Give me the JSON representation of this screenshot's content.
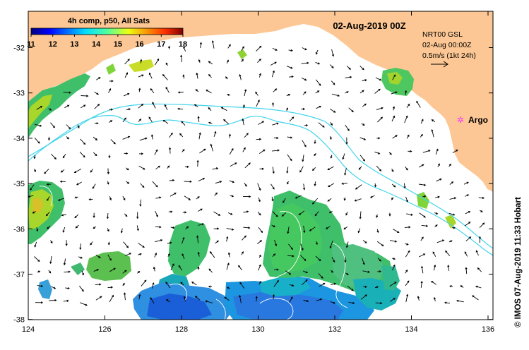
{
  "map": {
    "title": "02-Aug-2019 00Z",
    "colorbar": {
      "title": "4h comp, p50, All Sats",
      "ticks": [
        "11",
        "12",
        "13",
        "14",
        "15",
        "16",
        "17",
        "18"
      ]
    },
    "info": {
      "line1": "NRT00 GSL",
      "line2": "02-Aug 00:00Z",
      "line3": "0.5m/s (1kt 24h)"
    },
    "argo_label": "Argo",
    "credit": "© IMOS 07-Aug-2019 11:33 Hobart",
    "x_ticks": [
      "124",
      "126",
      "128",
      "130",
      "132",
      "134",
      "136"
    ],
    "y_ticks": [
      "-32",
      "-33",
      "-34",
      "-35",
      "-36",
      "-37",
      "-38"
    ],
    "colors": {
      "land": "#fcc794",
      "bathymetry": "#40d4ec",
      "argo": "#ff30ff"
    }
  }
}
